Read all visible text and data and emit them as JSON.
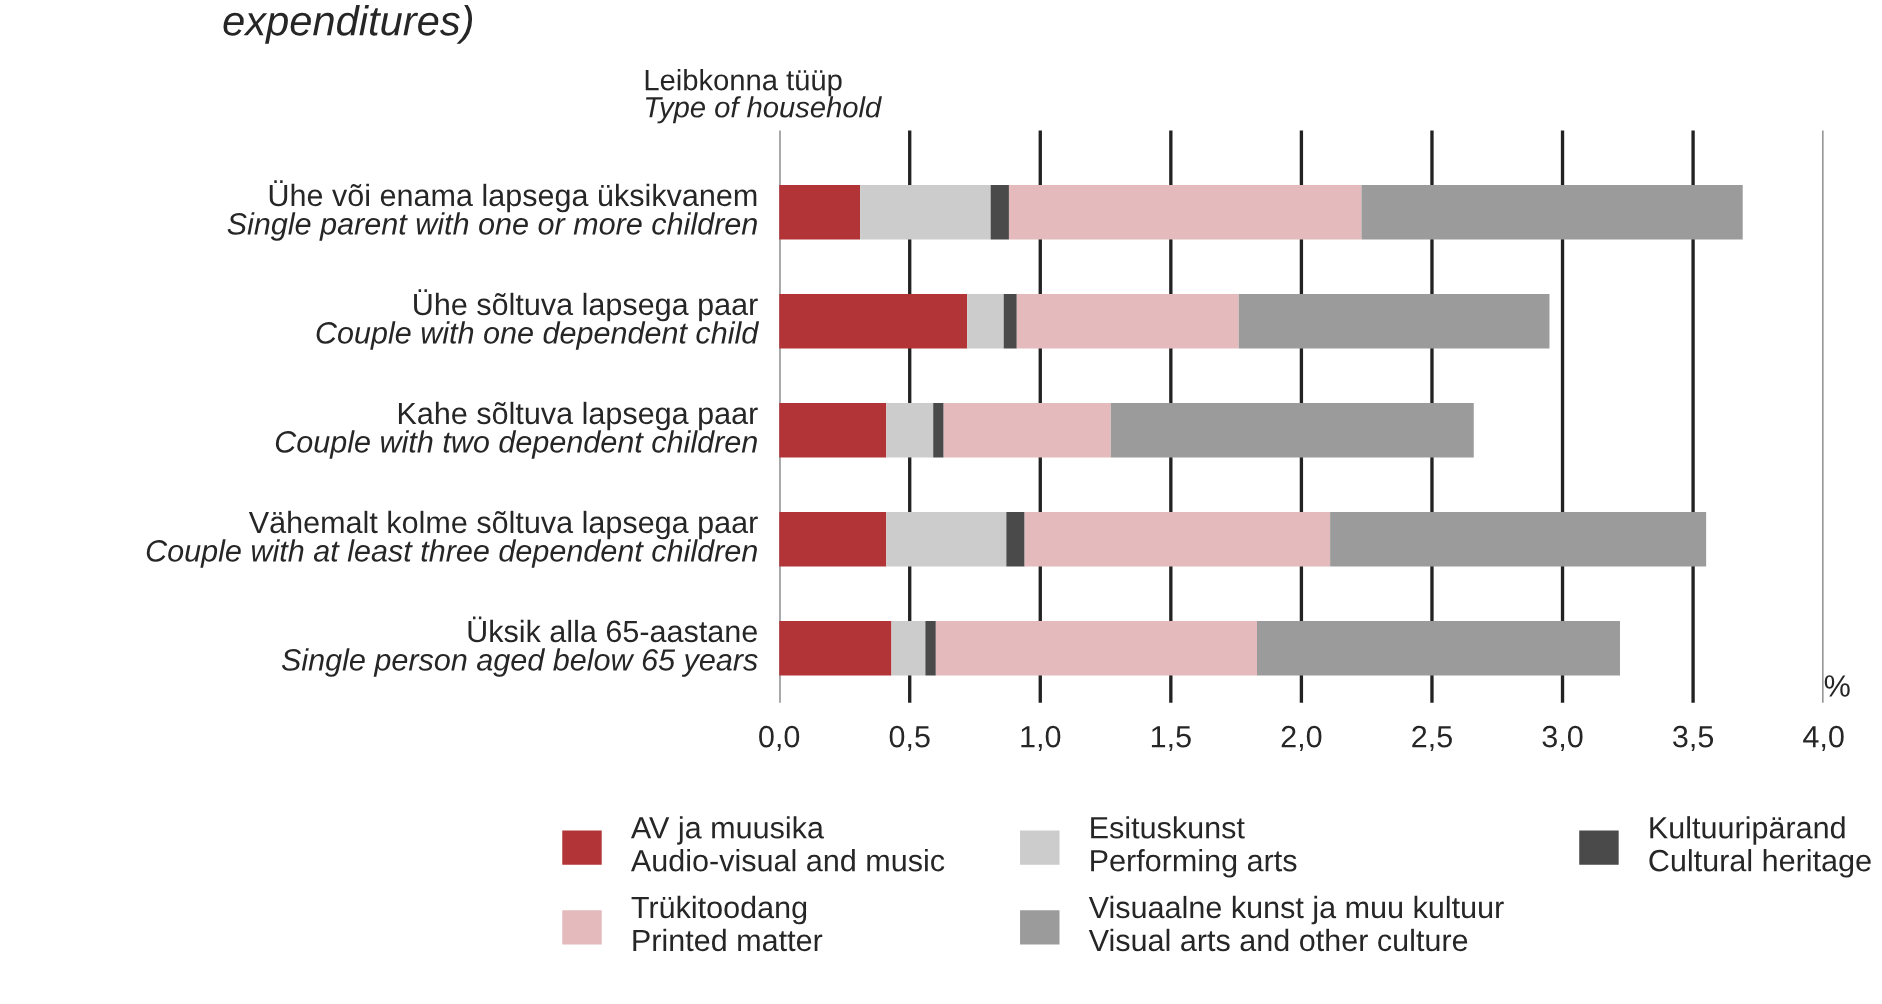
{
  "chart_data": {
    "type": "bar",
    "orientation": "horizontal",
    "stacked": true,
    "title": "expenditures)",
    "ylabel": "Leibkonna tüüp\nType of household",
    "categories": [
      "Ühe või enama lapsega üksikvanem\nSingle parent with one or more children",
      "Ühe sõltuva lapsega paar\nCouple with one dependent child",
      "Kahe sõltuva lapsega paar\nCouple with two dependent children",
      "Vähemalt kolme sõltuva lapsega paar\nCouple with at least three dependent children",
      "Üksik alla 65-aastane\nSingle person aged below 65 years"
    ],
    "series": [
      {
        "name": "AV ja muusika\nAudio-visual and music",
        "color": "#b23437",
        "values": [
          0.31,
          0.72,
          0.41,
          0.41,
          0.43
        ]
      },
      {
        "name": "Esituskunst\nPerforming arts",
        "color": "#cccccc",
        "values": [
          0.5,
          0.14,
          0.18,
          0.46,
          0.13
        ]
      },
      {
        "name": "Kultuuripärand\nCultural heritage",
        "color": "#4a4a4a",
        "values": [
          0.07,
          0.05,
          0.04,
          0.07,
          0.04
        ]
      },
      {
        "name": "Trükitoodang\nPrinted matter",
        "color": "#e4babc",
        "values": [
          1.35,
          0.85,
          0.64,
          1.17,
          1.23
        ]
      },
      {
        "name": "Visuaalne kunst ja muu kultuur\nVisual arts and other culture",
        "color": "#9b9b9b",
        "values": [
          1.46,
          1.19,
          1.39,
          1.44,
          1.39
        ]
      }
    ],
    "xlim": [
      0,
      4
    ],
    "xticks": [
      {
        "value": 0,
        "label": "0,0"
      },
      {
        "value": 0.5,
        "label": "0,5"
      },
      {
        "value": 1,
        "label": "1,0"
      },
      {
        "value": 1.5,
        "label": "1,5"
      },
      {
        "value": 2,
        "label": "2,0"
      },
      {
        "value": 2.5,
        "label": "2,5"
      },
      {
        "value": 3,
        "label": "3,0"
      },
      {
        "value": 3.5,
        "label": "3,5"
      },
      {
        "value": 4,
        "label": "4,0"
      }
    ],
    "grid": "x",
    "legend": "bottom",
    "annotations": [
      "%"
    ]
  }
}
